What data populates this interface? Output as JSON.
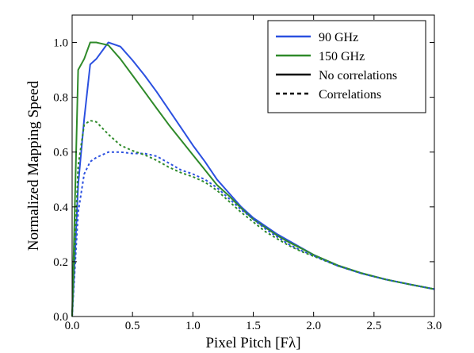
{
  "chart_data": {
    "type": "line",
    "xlabel": "Pixel Pitch [Fλ]",
    "ylabel": "Normalized Mapping Speed",
    "xlim": [
      0.0,
      3.0
    ],
    "ylim": [
      0.0,
      1.1
    ],
    "xticks": [
      "0.0",
      "0.5",
      "1.0",
      "1.5",
      "2.0",
      "2.5",
      "3.0"
    ],
    "yticks": [
      "0.0",
      "0.2",
      "0.4",
      "0.6",
      "0.8",
      "1.0"
    ],
    "grid": false,
    "legend_position": "top-right",
    "legend": [
      {
        "label": "90 GHz",
        "color": "#2b50e0",
        "dash": "solid"
      },
      {
        "label": "150 GHz",
        "color": "#2f8a2a",
        "dash": "solid"
      },
      {
        "label": "No correlations",
        "color": "#000000",
        "dash": "solid"
      },
      {
        "label": "Correlations",
        "color": "#000000",
        "dash": "dashed"
      }
    ],
    "series": [
      {
        "color": "#2b50e0",
        "dash": "solid",
        "x": [
          0.0,
          0.05,
          0.1,
          0.15,
          0.2,
          0.3,
          0.4,
          0.5,
          0.6,
          0.7,
          0.8,
          0.9,
          1.0,
          1.1,
          1.2,
          1.3,
          1.4,
          1.5,
          1.6,
          1.7,
          1.8,
          1.9,
          2.0,
          2.2,
          2.4,
          2.6,
          2.8,
          3.0
        ],
        "y": [
          0.0,
          0.48,
          0.72,
          0.92,
          0.94,
          1.0,
          0.985,
          0.935,
          0.88,
          0.82,
          0.755,
          0.69,
          0.625,
          0.565,
          0.5,
          0.45,
          0.4,
          0.36,
          0.33,
          0.3,
          0.275,
          0.25,
          0.225,
          0.185,
          0.157,
          0.135,
          0.117,
          0.1
        ]
      },
      {
        "color": "#2f8a2a",
        "dash": "solid",
        "x": [
          0.0,
          0.05,
          0.1,
          0.15,
          0.2,
          0.3,
          0.4,
          0.5,
          0.6,
          0.7,
          0.8,
          0.9,
          1.0,
          1.1,
          1.2,
          1.3,
          1.4,
          1.5,
          1.6,
          1.7,
          1.8,
          1.9,
          2.0,
          2.2,
          2.4,
          2.6,
          2.8,
          3.0
        ],
        "y": [
          0.0,
          0.9,
          0.94,
          1.0,
          1.0,
          0.99,
          0.94,
          0.88,
          0.82,
          0.76,
          0.7,
          0.645,
          0.59,
          0.535,
          0.48,
          0.44,
          0.395,
          0.355,
          0.325,
          0.295,
          0.27,
          0.248,
          0.225,
          0.187,
          0.158,
          0.135,
          0.117,
          0.1
        ]
      },
      {
        "color": "#2b50e0",
        "dash": "dashed",
        "x": [
          0.0,
          0.05,
          0.1,
          0.15,
          0.2,
          0.3,
          0.4,
          0.5,
          0.6,
          0.7,
          0.8,
          0.9,
          1.0,
          1.1,
          1.2,
          1.3,
          1.4,
          1.5,
          1.6,
          1.7,
          1.8,
          1.9,
          2.0,
          2.2,
          2.4,
          2.6,
          2.8,
          3.0
        ],
        "y": [
          0.0,
          0.38,
          0.52,
          0.565,
          0.58,
          0.6,
          0.6,
          0.595,
          0.595,
          0.585,
          0.56,
          0.535,
          0.52,
          0.5,
          0.47,
          0.43,
          0.39,
          0.355,
          0.32,
          0.29,
          0.262,
          0.24,
          0.222,
          0.185,
          0.157,
          0.135,
          0.117,
          0.1
        ]
      },
      {
        "color": "#2f8a2a",
        "dash": "dashed",
        "x": [
          0.0,
          0.05,
          0.1,
          0.15,
          0.2,
          0.3,
          0.4,
          0.5,
          0.6,
          0.7,
          0.8,
          0.9,
          1.0,
          1.1,
          1.2,
          1.3,
          1.4,
          1.5,
          1.6,
          1.7,
          1.8,
          1.9,
          2.0,
          2.2,
          2.4,
          2.6,
          2.8,
          3.0
        ],
        "y": [
          0.0,
          0.55,
          0.7,
          0.715,
          0.71,
          0.665,
          0.625,
          0.605,
          0.59,
          0.57,
          0.545,
          0.525,
          0.51,
          0.49,
          0.46,
          0.42,
          0.38,
          0.345,
          0.31,
          0.283,
          0.258,
          0.237,
          0.22,
          0.185,
          0.157,
          0.135,
          0.117,
          0.1
        ]
      }
    ]
  }
}
